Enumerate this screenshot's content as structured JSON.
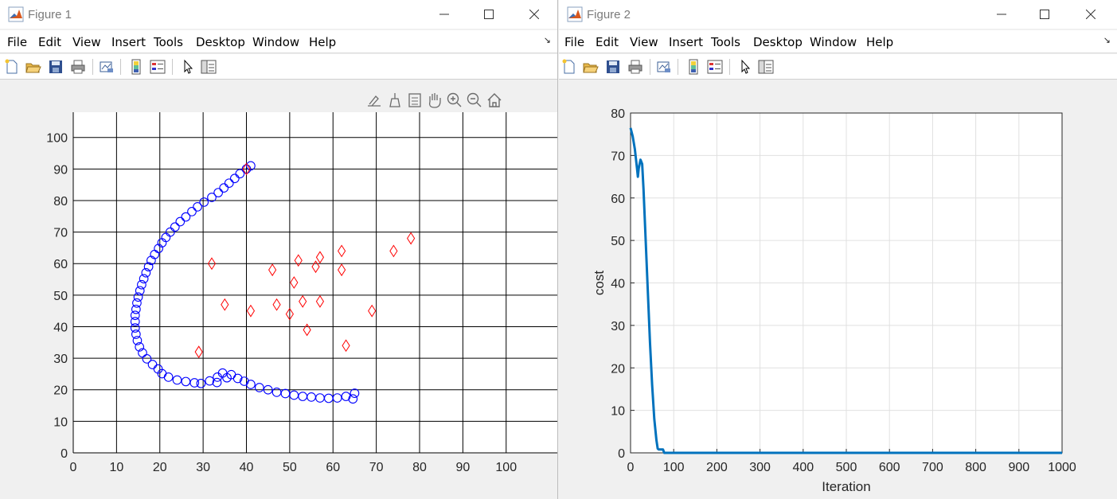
{
  "figure1": {
    "title": "Figure 1",
    "menu": [
      "File",
      "Edit",
      "View",
      "Insert",
      "Tools",
      "Desktop",
      "Window",
      "Help"
    ],
    "toolbar_icons": [
      "new-figure-icon",
      "open-file-icon",
      "save-icon",
      "print-icon",
      "link-plot-icon",
      "insert-colorbar-icon",
      "insert-legend-icon",
      "edit-plot-icon",
      "property-inspector-icon"
    ],
    "axes_toolbar_icons": [
      "brush-icon",
      "data-tips-icon",
      "data-cursor-icon",
      "pan-hand-icon",
      "zoom-in-icon",
      "zoom-out-icon",
      "home-icon"
    ],
    "chart_data": {
      "type": "scatter",
      "xlim": [
        0,
        112
      ],
      "ylim": [
        0,
        108
      ],
      "xticks": [
        0,
        10,
        20,
        30,
        40,
        50,
        60,
        70,
        80,
        90,
        100
      ],
      "yticks": [
        0,
        10,
        20,
        30,
        40,
        50,
        60,
        70,
        80,
        90,
        100
      ],
      "grid": true,
      "series": [
        {
          "marker": "circle",
          "color": "#0000ff",
          "points": [
            [
              41,
              91
            ],
            [
              40,
              90
            ],
            [
              38.5,
              88.5
            ],
            [
              37.3,
              87
            ],
            [
              36,
              85.5
            ],
            [
              34.8,
              84
            ],
            [
              33.5,
              82.5
            ],
            [
              32,
              81
            ],
            [
              30.2,
              79.5
            ],
            [
              28.7,
              78
            ],
            [
              27.4,
              76.5
            ],
            [
              26,
              74.8
            ],
            [
              24.7,
              73.3
            ],
            [
              23.5,
              71.6
            ],
            [
              22.4,
              70
            ],
            [
              21.4,
              68.3
            ],
            [
              20.5,
              66.6
            ],
            [
              19.7,
              64.8
            ],
            [
              18.8,
              62.9
            ],
            [
              18,
              61
            ],
            [
              17.4,
              59
            ],
            [
              16.8,
              57.1
            ],
            [
              16.3,
              55.2
            ],
            [
              15.8,
              53.3
            ],
            [
              15.4,
              51.4
            ],
            [
              15,
              49.4
            ],
            [
              14.7,
              47.5
            ],
            [
              14.5,
              45.5
            ],
            [
              14.3,
              43.6
            ],
            [
              14.3,
              41.6
            ],
            [
              14.3,
              39.6
            ],
            [
              14.5,
              37.6
            ],
            [
              14.8,
              35.6
            ],
            [
              15.3,
              33.6
            ],
            [
              16,
              31.7
            ],
            [
              17,
              29.8
            ],
            [
              18.3,
              28
            ],
            [
              19.6,
              26.6
            ],
            [
              20.5,
              25.1
            ],
            [
              22,
              24
            ],
            [
              24,
              23.1
            ],
            [
              26,
              22.6
            ],
            [
              28,
              22.2
            ],
            [
              29.5,
              22
            ],
            [
              31.5,
              22.8
            ],
            [
              33.2,
              22.3
            ],
            [
              33.3,
              24
            ],
            [
              34.5,
              25.3
            ],
            [
              35.5,
              23.8
            ],
            [
              36.5,
              24.8
            ],
            [
              38,
              23.6
            ],
            [
              39.5,
              22.7
            ],
            [
              41,
              21.7
            ],
            [
              43,
              20.7
            ],
            [
              45,
              20
            ],
            [
              47,
              19.2
            ],
            [
              49,
              18.8
            ],
            [
              51,
              18.3
            ],
            [
              53,
              17.9
            ],
            [
              55,
              17.7
            ],
            [
              57,
              17.4
            ],
            [
              59,
              17.3
            ],
            [
              61,
              17.4
            ],
            [
              63,
              17.9
            ],
            [
              65,
              18.9
            ],
            [
              64.6,
              17.1
            ]
          ]
        },
        {
          "marker": "diamond",
          "color": "#ff0000",
          "points": [
            [
              29,
              32
            ],
            [
              32,
              60
            ],
            [
              35,
              47
            ],
            [
              40,
              90
            ],
            [
              41,
              45
            ],
            [
              46,
              58
            ],
            [
              47,
              47
            ],
            [
              50,
              44
            ],
            [
              51,
              54
            ],
            [
              52,
              61
            ],
            [
              53,
              48
            ],
            [
              54,
              39
            ],
            [
              56,
              59
            ],
            [
              57,
              62
            ],
            [
              57,
              48
            ],
            [
              62,
              64
            ],
            [
              62,
              58
            ],
            [
              63,
              34
            ],
            [
              69,
              45
            ],
            [
              74,
              64
            ],
            [
              78,
              68
            ]
          ]
        }
      ]
    }
  },
  "figure2": {
    "title": "Figure 2",
    "menu": [
      "File",
      "Edit",
      "View",
      "Insert",
      "Tools",
      "Desktop",
      "Window",
      "Help"
    ],
    "chart_data": {
      "type": "line",
      "xlabel": "Iteration",
      "ylabel": "cost",
      "xlim": [
        0,
        1000
      ],
      "ylim": [
        0,
        80
      ],
      "xticks": [
        0,
        100,
        200,
        300,
        400,
        500,
        600,
        700,
        800,
        900,
        1000
      ],
      "yticks": [
        0,
        10,
        20,
        30,
        40,
        50,
        60,
        70,
        80
      ],
      "grid": true,
      "color": "#0072bd",
      "points": [
        [
          0,
          76.5
        ],
        [
          5,
          74.5
        ],
        [
          10,
          71.5
        ],
        [
          15,
          67
        ],
        [
          17,
          65
        ],
        [
          19,
          67
        ],
        [
          23,
          69
        ],
        [
          27,
          68
        ],
        [
          30,
          62
        ],
        [
          35,
          50
        ],
        [
          40,
          38
        ],
        [
          45,
          26
        ],
        [
          50,
          16
        ],
        [
          55,
          8
        ],
        [
          60,
          3
        ],
        [
          63,
          1
        ],
        [
          65,
          0.8
        ],
        [
          75,
          0.8
        ],
        [
          78,
          0
        ],
        [
          1000,
          0
        ]
      ]
    }
  }
}
